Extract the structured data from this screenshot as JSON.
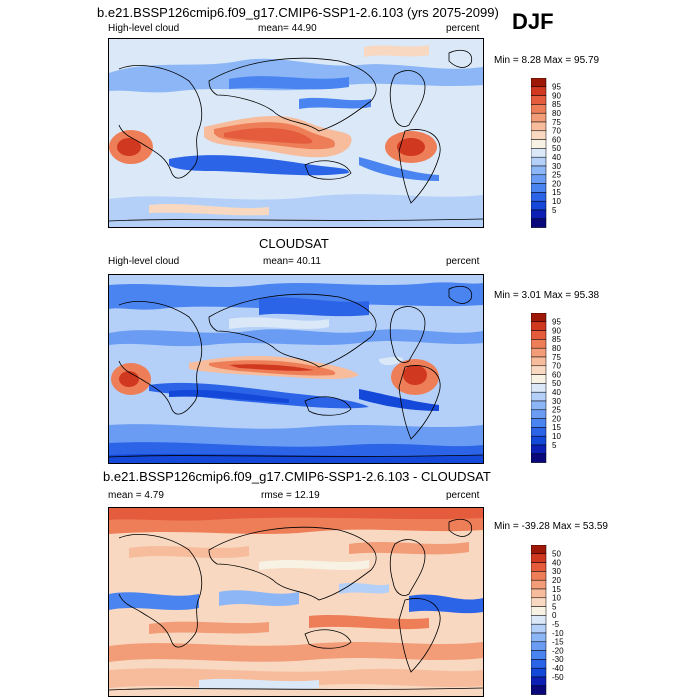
{
  "season": "DJF",
  "panels": [
    {
      "id": "model",
      "title": "b.e21.BSSP126cmip6.f09_g17.CMIP6-SSP1-2.6.103 (yrs 2075-2099)",
      "left_label": "High-level cloud",
      "center_label": "mean=  44.90",
      "right_label": "percent",
      "minmax": "Min =   8.28 Max =  95.79",
      "colorbar_labels": [
        "95",
        "90",
        "85",
        "80",
        "75",
        "70",
        "60",
        "50",
        "40",
        "30",
        "25",
        "20",
        "15",
        "10",
        "5"
      ]
    },
    {
      "id": "obs",
      "title": "CLOUDSAT",
      "left_label": "High-level cloud",
      "center_label": "mean=  40.11",
      "right_label": "percent",
      "minmax": "Min =   3.01 Max =  95.38",
      "colorbar_labels": [
        "95",
        "90",
        "85",
        "80",
        "75",
        "70",
        "60",
        "50",
        "40",
        "30",
        "25",
        "20",
        "15",
        "10",
        "5"
      ]
    },
    {
      "id": "diff",
      "title": "b.e21.BSSP126cmip6.f09_g17.CMIP6-SSP1-2.6.103 - CLOUDSAT",
      "left_label": "mean =   4.79",
      "center_label": "rmse =  12.19",
      "right_label": "percent",
      "minmax": "Min = -39.28 Max =  53.59",
      "colorbar_labels": [
        "50",
        "40",
        "30",
        "20",
        "15",
        "10",
        "5",
        "0",
        "-5",
        "-10",
        "-15",
        "-20",
        "-30",
        "-40",
        "-50"
      ]
    }
  ],
  "colors": {
    "abs_scale": [
      "#08087a",
      "#0c20b6",
      "#1448d8",
      "#2c64e8",
      "#4a84f0",
      "#6a9cf4",
      "#8cb6f6",
      "#b4d0f8",
      "#dae8f8",
      "#f8f2e4",
      "#f8d8c0",
      "#f6bc9c",
      "#f29c78",
      "#ee7e58",
      "#e45c3c",
      "#d03820",
      "#9e1808"
    ],
    "diff_scale": [
      "#08087a",
      "#0c20b6",
      "#1448d8",
      "#2c64e8",
      "#4a84f0",
      "#6a9cf4",
      "#8cb6f6",
      "#b4d0f8",
      "#dae8f8",
      "#f8f2e4",
      "#f8d8c0",
      "#f6bc9c",
      "#f29c78",
      "#ee7e58",
      "#e45c3c",
      "#d03820",
      "#9e1808"
    ]
  }
}
